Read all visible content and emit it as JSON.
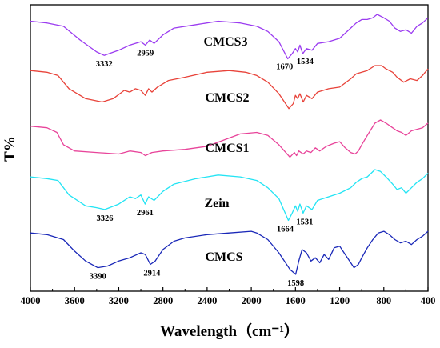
{
  "chart_data": {
    "type": "line",
    "title": "",
    "xlabel": "Wavelength（cm⁻¹）",
    "ylabel": "T%",
    "x_reversed": true,
    "xlim": [
      4000,
      400
    ],
    "xticks": [
      "4000",
      "3600",
      "3200",
      "2800",
      "2400",
      "2000",
      "1600",
      "1200",
      "800",
      "400"
    ],
    "y_ticks_shown": false,
    "series": [
      {
        "name": "CMCS3",
        "color": "#9b3cf0",
        "points": [
          [
            4000,
            0.96
          ],
          [
            3850,
            0.95
          ],
          [
            3700,
            0.93
          ],
          [
            3550,
            0.85
          ],
          [
            3400,
            0.78
          ],
          [
            3332,
            0.76
          ],
          [
            3200,
            0.79
          ],
          [
            3100,
            0.82
          ],
          [
            3000,
            0.84
          ],
          [
            2959,
            0.82
          ],
          [
            2920,
            0.85
          ],
          [
            2880,
            0.83
          ],
          [
            2800,
            0.88
          ],
          [
            2700,
            0.92
          ],
          [
            2500,
            0.94
          ],
          [
            2300,
            0.96
          ],
          [
            2100,
            0.95
          ],
          [
            1950,
            0.93
          ],
          [
            1850,
            0.9
          ],
          [
            1750,
            0.84
          ],
          [
            1670,
            0.74
          ],
          [
            1630,
            0.77
          ],
          [
            1600,
            0.8
          ],
          [
            1580,
            0.78
          ],
          [
            1560,
            0.82
          ],
          [
            1534,
            0.77
          ],
          [
            1500,
            0.8
          ],
          [
            1450,
            0.79
          ],
          [
            1400,
            0.83
          ],
          [
            1300,
            0.84
          ],
          [
            1200,
            0.86
          ],
          [
            1100,
            0.92
          ],
          [
            1050,
            0.95
          ],
          [
            1000,
            0.97
          ],
          [
            950,
            0.97
          ],
          [
            900,
            0.98
          ],
          [
            860,
            1.0
          ],
          [
            800,
            0.98
          ],
          [
            750,
            0.96
          ],
          [
            700,
            0.92
          ],
          [
            650,
            0.9
          ],
          [
            600,
            0.91
          ],
          [
            550,
            0.89
          ],
          [
            500,
            0.93
          ],
          [
            450,
            0.95
          ],
          [
            400,
            0.98
          ]
        ]
      },
      {
        "name": "CMCS2",
        "color": "#e8433a",
        "points": [
          [
            4000,
            0.97
          ],
          [
            3850,
            0.96
          ],
          [
            3750,
            0.94
          ],
          [
            3650,
            0.86
          ],
          [
            3500,
            0.8
          ],
          [
            3350,
            0.78
          ],
          [
            3250,
            0.8
          ],
          [
            3150,
            0.85
          ],
          [
            3100,
            0.84
          ],
          [
            3050,
            0.86
          ],
          [
            3000,
            0.85
          ],
          [
            2960,
            0.82
          ],
          [
            2930,
            0.86
          ],
          [
            2900,
            0.84
          ],
          [
            2850,
            0.87
          ],
          [
            2750,
            0.91
          ],
          [
            2600,
            0.93
          ],
          [
            2400,
            0.96
          ],
          [
            2200,
            0.97
          ],
          [
            2050,
            0.96
          ],
          [
            1950,
            0.94
          ],
          [
            1850,
            0.9
          ],
          [
            1750,
            0.83
          ],
          [
            1660,
            0.74
          ],
          [
            1620,
            0.77
          ],
          [
            1600,
            0.82
          ],
          [
            1580,
            0.8
          ],
          [
            1560,
            0.83
          ],
          [
            1530,
            0.78
          ],
          [
            1500,
            0.82
          ],
          [
            1450,
            0.8
          ],
          [
            1400,
            0.84
          ],
          [
            1300,
            0.86
          ],
          [
            1200,
            0.87
          ],
          [
            1100,
            0.92
          ],
          [
            1050,
            0.95
          ],
          [
            1000,
            0.96
          ],
          [
            950,
            0.97
          ],
          [
            880,
            1.0
          ],
          [
            820,
            1.0
          ],
          [
            780,
            0.98
          ],
          [
            720,
            0.96
          ],
          [
            680,
            0.93
          ],
          [
            620,
            0.9
          ],
          [
            560,
            0.92
          ],
          [
            500,
            0.91
          ],
          [
            450,
            0.94
          ],
          [
            400,
            0.98
          ]
        ]
      },
      {
        "name": "CMCS1",
        "color": "#e8449a",
        "points": [
          [
            4000,
            0.96
          ],
          [
            3850,
            0.95
          ],
          [
            3760,
            0.92
          ],
          [
            3700,
            0.84
          ],
          [
            3600,
            0.8
          ],
          [
            3400,
            0.79
          ],
          [
            3200,
            0.78
          ],
          [
            3100,
            0.8
          ],
          [
            3000,
            0.79
          ],
          [
            2960,
            0.77
          ],
          [
            2900,
            0.79
          ],
          [
            2800,
            0.8
          ],
          [
            2600,
            0.81
          ],
          [
            2400,
            0.83
          ],
          [
            2250,
            0.87
          ],
          [
            2100,
            0.91
          ],
          [
            1950,
            0.92
          ],
          [
            1850,
            0.9
          ],
          [
            1750,
            0.84
          ],
          [
            1650,
            0.76
          ],
          [
            1610,
            0.79
          ],
          [
            1590,
            0.77
          ],
          [
            1570,
            0.8
          ],
          [
            1530,
            0.78
          ],
          [
            1500,
            0.8
          ],
          [
            1460,
            0.79
          ],
          [
            1420,
            0.82
          ],
          [
            1380,
            0.8
          ],
          [
            1320,
            0.83
          ],
          [
            1250,
            0.85
          ],
          [
            1200,
            0.86
          ],
          [
            1150,
            0.82
          ],
          [
            1100,
            0.79
          ],
          [
            1060,
            0.78
          ],
          [
            1030,
            0.8
          ],
          [
            1000,
            0.84
          ],
          [
            950,
            0.9
          ],
          [
            880,
            0.98
          ],
          [
            830,
            1.0
          ],
          [
            780,
            0.98
          ],
          [
            720,
            0.95
          ],
          [
            680,
            0.93
          ],
          [
            640,
            0.92
          ],
          [
            600,
            0.9
          ],
          [
            550,
            0.93
          ],
          [
            500,
            0.94
          ],
          [
            450,
            0.95
          ],
          [
            400,
            0.98
          ]
        ]
      },
      {
        "name": "Zein",
        "color": "#24e4f4",
        "points": [
          [
            4000,
            0.96
          ],
          [
            3850,
            0.95
          ],
          [
            3750,
            0.94
          ],
          [
            3650,
            0.86
          ],
          [
            3500,
            0.8
          ],
          [
            3400,
            0.79
          ],
          [
            3326,
            0.78
          ],
          [
            3200,
            0.81
          ],
          [
            3100,
            0.85
          ],
          [
            3050,
            0.84
          ],
          [
            3000,
            0.86
          ],
          [
            2961,
            0.81
          ],
          [
            2930,
            0.85
          ],
          [
            2880,
            0.83
          ],
          [
            2800,
            0.88
          ],
          [
            2700,
            0.92
          ],
          [
            2500,
            0.95
          ],
          [
            2300,
            0.97
          ],
          [
            2100,
            0.96
          ],
          [
            1950,
            0.94
          ],
          [
            1850,
            0.9
          ],
          [
            1750,
            0.84
          ],
          [
            1664,
            0.72
          ],
          [
            1630,
            0.76
          ],
          [
            1600,
            0.8
          ],
          [
            1580,
            0.77
          ],
          [
            1560,
            0.81
          ],
          [
            1531,
            0.76
          ],
          [
            1500,
            0.8
          ],
          [
            1450,
            0.78
          ],
          [
            1400,
            0.83
          ],
          [
            1300,
            0.85
          ],
          [
            1200,
            0.87
          ],
          [
            1100,
            0.9
          ],
          [
            1050,
            0.93
          ],
          [
            1000,
            0.95
          ],
          [
            950,
            0.96
          ],
          [
            880,
            1.0
          ],
          [
            830,
            0.99
          ],
          [
            780,
            0.96
          ],
          [
            720,
            0.92
          ],
          [
            680,
            0.89
          ],
          [
            640,
            0.9
          ],
          [
            600,
            0.87
          ],
          [
            550,
            0.9
          ],
          [
            500,
            0.93
          ],
          [
            450,
            0.95
          ],
          [
            400,
            0.98
          ]
        ]
      },
      {
        "name": "CMCS",
        "color": "#1a28b8",
        "points": [
          [
            4000,
            0.97
          ],
          [
            3850,
            0.96
          ],
          [
            3700,
            0.93
          ],
          [
            3600,
            0.86
          ],
          [
            3500,
            0.8
          ],
          [
            3390,
            0.76
          ],
          [
            3300,
            0.77
          ],
          [
            3200,
            0.8
          ],
          [
            3100,
            0.82
          ],
          [
            3000,
            0.85
          ],
          [
            2960,
            0.84
          ],
          [
            2914,
            0.78
          ],
          [
            2870,
            0.8
          ],
          [
            2800,
            0.87
          ],
          [
            2700,
            0.92
          ],
          [
            2600,
            0.94
          ],
          [
            2400,
            0.96
          ],
          [
            2200,
            0.97
          ],
          [
            2000,
            0.98
          ],
          [
            1950,
            0.97
          ],
          [
            1850,
            0.93
          ],
          [
            1750,
            0.85
          ],
          [
            1650,
            0.75
          ],
          [
            1598,
            0.72
          ],
          [
            1570,
            0.8
          ],
          [
            1540,
            0.87
          ],
          [
            1500,
            0.85
          ],
          [
            1460,
            0.8
          ],
          [
            1420,
            0.82
          ],
          [
            1380,
            0.79
          ],
          [
            1340,
            0.84
          ],
          [
            1300,
            0.81
          ],
          [
            1250,
            0.88
          ],
          [
            1200,
            0.89
          ],
          [
            1150,
            0.84
          ],
          [
            1100,
            0.79
          ],
          [
            1070,
            0.76
          ],
          [
            1030,
            0.78
          ],
          [
            1000,
            0.82
          ],
          [
            950,
            0.88
          ],
          [
            900,
            0.93
          ],
          [
            850,
            0.97
          ],
          [
            800,
            0.98
          ],
          [
            750,
            0.96
          ],
          [
            700,
            0.93
          ],
          [
            650,
            0.91
          ],
          [
            600,
            0.92
          ],
          [
            550,
            0.9
          ],
          [
            500,
            0.93
          ],
          [
            450,
            0.95
          ],
          [
            400,
            0.98
          ]
        ]
      }
    ],
    "annotations": [
      {
        "series": "CMCS3",
        "text": "3332",
        "x": 3332
      },
      {
        "series": "CMCS3",
        "text": "2959",
        "x": 2959
      },
      {
        "series": "CMCS3",
        "text": "1670",
        "x": 1670
      },
      {
        "series": "CMCS3",
        "text": "1534",
        "x": 1534
      },
      {
        "series": "Zein",
        "text": "3326",
        "x": 3326
      },
      {
        "series": "Zein",
        "text": "2961",
        "x": 2961
      },
      {
        "series": "Zein",
        "text": "1664",
        "x": 1664
      },
      {
        "series": "Zein",
        "text": "1531",
        "x": 1531
      },
      {
        "series": "CMCS",
        "text": "3390",
        "x": 3390
      },
      {
        "series": "CMCS",
        "text": "2914",
        "x": 2914
      },
      {
        "series": "CMCS",
        "text": "1598",
        "x": 1598
      }
    ]
  }
}
